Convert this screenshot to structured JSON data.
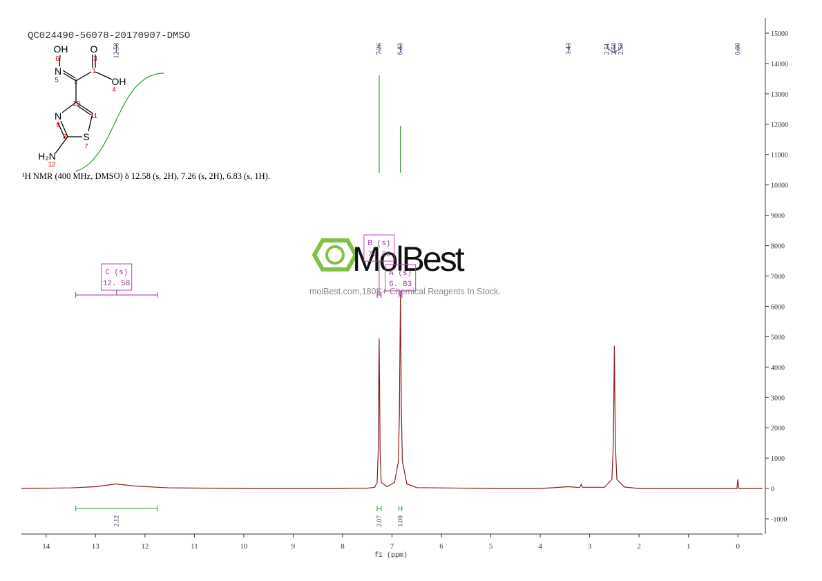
{
  "chart_data": {
    "type": "line",
    "title": "QC024490-56078-20170907-DMSO",
    "description": "¹H NMR (400 MHz, DMSO) δ 12.58 (s, 2H), 7.26 (s, 2H), 6.83 (s, 1H).",
    "x_label": "f1 (ppm)",
    "xlim": [
      14.5,
      -0.5
    ],
    "ylim": [
      -1500,
      15500
    ],
    "xticks": [
      14,
      13,
      12,
      11,
      10,
      9,
      8,
      7,
      6,
      5,
      4,
      3,
      2,
      1,
      0
    ],
    "yticks": [
      -1000,
      0,
      1000,
      2000,
      3000,
      4000,
      5000,
      6000,
      7000,
      8000,
      9000,
      10000,
      11000,
      12000,
      13000,
      14000,
      15000
    ],
    "x": [
      14.5,
      13.5,
      13.0,
      12.58,
      12.2,
      11.5,
      10,
      8,
      7.5,
      7.35,
      7.3,
      7.28,
      7.26,
      7.24,
      7.22,
      7.1,
      6.95,
      6.87,
      6.85,
      6.83,
      6.81,
      6.79,
      6.7,
      6.5,
      5,
      4,
      3.43,
      3.2,
      3.17,
      3.15,
      2.7,
      2.55,
      2.52,
      2.5,
      2.48,
      2.45,
      2.3,
      2,
      1,
      0.02,
      0,
      -0.02,
      -0.5
    ],
    "series": [
      {
        "color": "#8b1a1a",
        "values": [
          0,
          20,
          60,
          150,
          80,
          20,
          0,
          0,
          10,
          40,
          200,
          1200,
          4950,
          1200,
          200,
          60,
          200,
          900,
          2500,
          6400,
          2500,
          900,
          150,
          30,
          0,
          0,
          60,
          30,
          140,
          40,
          40,
          300,
          1500,
          4700,
          1500,
          300,
          50,
          0,
          0,
          0,
          300,
          0,
          0
        ]
      }
    ],
    "peaks": [
      12.58,
      7.26,
      6.83,
      3.43,
      2.51,
      {
        "value": 2.5,
        "label": "2.50"
      },
      {
        "value": 2.5,
        "label": "2.50"
      },
      {
        "value": 0,
        "label": "0.00"
      }
    ],
    "integrals": {
      "ranges": [
        [
          13.4,
          11.75
        ],
        [
          7.3,
          7.22
        ],
        [
          6.86,
          6.8
        ]
      ],
      "values": [
        2.12,
        2.07,
        1
      ],
      "value_labels": [
        "2.12",
        "2.07",
        "1.00"
      ]
    },
    "multiplets": [
      {
        "name": "C (s)",
        "shift": "12. 58",
        "range": [
          13.4,
          11.75
        ]
      },
      {
        "name": "B (s)",
        "shift": "7. 26",
        "range": [
          7.3,
          7.22
        ]
      },
      {
        "name": "A (s)",
        "shift": "6. 83",
        "range": [
          6.86,
          6.8
        ]
      }
    ]
  },
  "structure": {
    "atoms": [
      "OH",
      "O",
      "N",
      "OH",
      "N",
      "S",
      "H₂N"
    ],
    "numbers": [
      "6",
      "3",
      "5",
      "1",
      "2",
      "4",
      "10",
      "11",
      "9",
      "8",
      "7",
      "12"
    ]
  },
  "watermark": {
    "brand": "MolBest",
    "tagline": "molBest.com,180K+ Chemical Reagents In Stock."
  }
}
